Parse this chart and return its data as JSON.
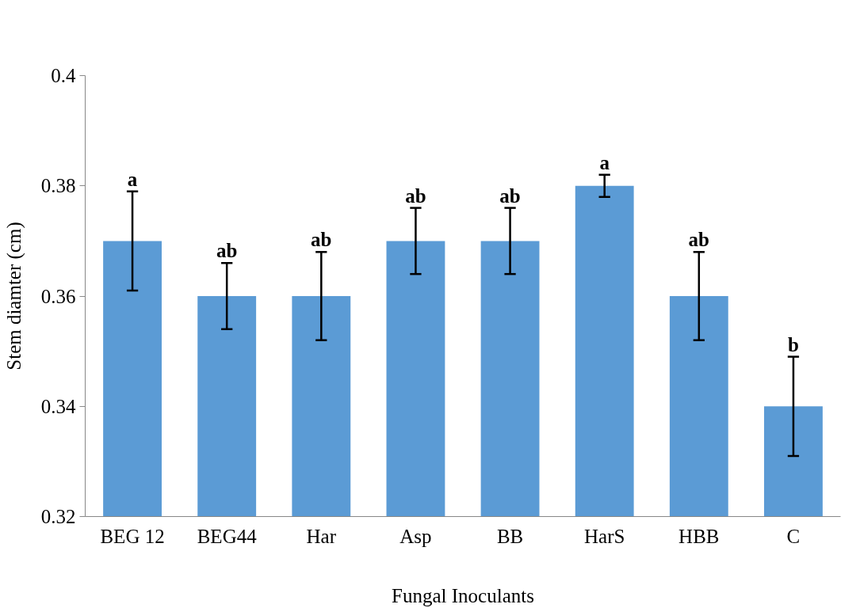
{
  "chart_data": {
    "type": "bar",
    "xlabel": "Fungal Inoculants",
    "ylabel": "Stem diamter (cm)",
    "categories": [
      "BEG 12",
      "BEG44",
      "Har",
      "Asp",
      "BB",
      "HarS",
      "HBB",
      "C"
    ],
    "values": [
      0.37,
      0.36,
      0.36,
      0.37,
      0.37,
      0.38,
      0.36,
      0.34
    ],
    "errors": [
      0.009,
      0.006,
      0.008,
      0.006,
      0.006,
      0.002,
      0.008,
      0.009
    ],
    "color": "#5b9bd5",
    "ylim": [
      0.32,
      0.4
    ],
    "yticks": [
      0.32,
      0.34,
      0.36,
      0.38,
      0.4
    ],
    "grid": false,
    "annotations": [
      {
        "text": "a",
        "x": "BEG 12",
        "y": 0.379
      },
      {
        "text": "ab",
        "x": "BEG44",
        "y": 0.366
      },
      {
        "text": "ab",
        "x": "Har",
        "y": 0.368
      },
      {
        "text": "ab",
        "x": "Asp",
        "y": 0.376
      },
      {
        "text": "ab",
        "x": "BB",
        "y": 0.376
      },
      {
        "text": "a",
        "x": "HarS",
        "y": 0.382
      },
      {
        "text": "ab",
        "x": "HBB",
        "y": 0.368
      },
      {
        "text": "b",
        "x": "C",
        "y": 0.349
      }
    ]
  }
}
